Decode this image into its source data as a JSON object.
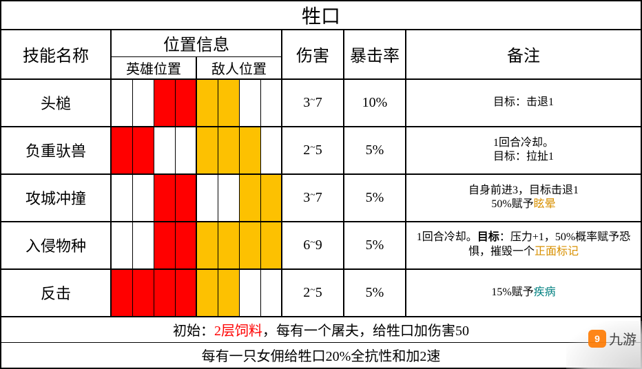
{
  "title": "牲口",
  "headers": {
    "skill": "技能名称",
    "posInfo": "位置信息",
    "heroPos": "英雄位置",
    "enemyPos": "敌人位置",
    "damage": "伤害",
    "crit": "暴击率",
    "notes": "备注"
  },
  "colors": {
    "hero": "#ff0000",
    "enemy": "#fdc101",
    "border": "#000000",
    "redText": "#ff0000",
    "orangeText": "#d89000",
    "tealText": "#008080"
  },
  "skills": [
    {
      "name": "头槌",
      "hero": [
        false,
        false,
        true,
        true
      ],
      "enemy": [
        true,
        true,
        false,
        false
      ],
      "dmg": "3~7",
      "crit": "10%",
      "notes": [
        {
          "t": "目标：击退1"
        }
      ]
    },
    {
      "name": "负重驮兽",
      "hero": [
        true,
        true,
        false,
        false
      ],
      "enemy": [
        true,
        true,
        true,
        false
      ],
      "dmg": "2~5",
      "crit": "5%",
      "notes": [
        {
          "t": "1回合冷却。"
        },
        {
          "br": true
        },
        {
          "t": "目标：拉扯1"
        }
      ]
    },
    {
      "name": "攻城冲撞",
      "hero": [
        false,
        false,
        true,
        true
      ],
      "enemy": [
        false,
        false,
        true,
        true
      ],
      "dmg": "3~7",
      "crit": "5%",
      "notes": [
        {
          "t": "自身前进3，目标击退1"
        },
        {
          "br": true
        },
        {
          "t": "50%赋予"
        },
        {
          "t": "眩晕",
          "cls": "orange-text"
        }
      ]
    },
    {
      "name": "入侵物种",
      "hero": [
        false,
        false,
        true,
        true
      ],
      "enemy": [
        true,
        true,
        true,
        true
      ],
      "dmg": "6~9",
      "crit": "5%",
      "notes": [
        {
          "t": "1回合冷却。"
        },
        {
          "t": "目标",
          "b": true
        },
        {
          "t": "：压力+1，50%概率赋予恐惧，摧毁一个"
        },
        {
          "t": "正面标记",
          "cls": "orange-text"
        }
      ]
    },
    {
      "name": "反击",
      "hero": [
        true,
        true,
        true,
        true
      ],
      "enemy": [
        true,
        true,
        false,
        false
      ],
      "dmg": "2~5",
      "crit": "5%",
      "notes": [
        {
          "t": "15%赋予"
        },
        {
          "t": "疾病",
          "cls": "teal-text"
        }
      ]
    }
  ],
  "footer": {
    "line1": {
      "pre": "初始：",
      "red": "2层饲料",
      "post": "，每有一个屠夫，给牲口加伤害50"
    },
    "line2": "每有一只女佣给牲口20%全抗性和加2速"
  },
  "watermark": {
    "text": "九游",
    "icon": "9"
  }
}
